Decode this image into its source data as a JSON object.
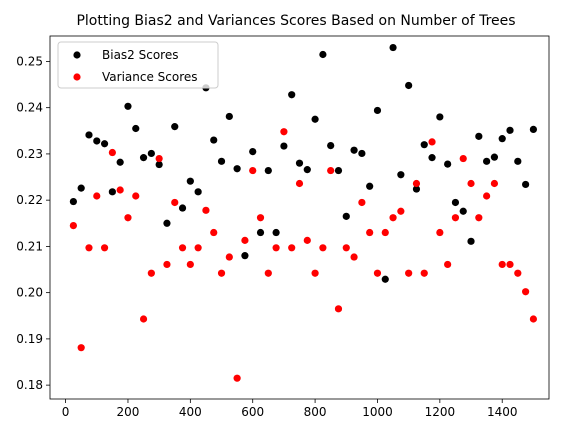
{
  "chart_data": {
    "type": "scatter",
    "title": "Plotting Bias2 and Variances Scores Based on Number of Trees",
    "xlabel": "",
    "ylabel": "",
    "xlim": [
      -50,
      1550
    ],
    "ylim": [
      0.177,
      0.2555
    ],
    "xticks": [
      0,
      200,
      400,
      600,
      800,
      1000,
      1200,
      1400
    ],
    "yticks": [
      0.18,
      0.19,
      0.2,
      0.21,
      0.22,
      0.23,
      0.24,
      0.25
    ],
    "ytick_labels": [
      "0.18",
      "0.19",
      "0.20",
      "0.21",
      "0.22",
      "0.23",
      "0.24",
      "0.25"
    ],
    "grid": false,
    "legend_position": "top-left",
    "series": [
      {
        "name": "Bias2 Scores",
        "color": "#000000",
        "points": [
          [
            25,
            0.2197
          ],
          [
            50,
            0.2226
          ],
          [
            75,
            0.2341
          ],
          [
            100,
            0.2328
          ],
          [
            125,
            0.2322
          ],
          [
            150,
            0.2218
          ],
          [
            175,
            0.2282
          ],
          [
            200,
            0.2403
          ],
          [
            225,
            0.2355
          ],
          [
            250,
            0.2292
          ],
          [
            275,
            0.2301
          ],
          [
            300,
            0.2277
          ],
          [
            325,
            0.215
          ],
          [
            350,
            0.2359
          ],
          [
            375,
            0.2183
          ],
          [
            400,
            0.2241
          ],
          [
            425,
            0.2218
          ],
          [
            450,
            0.2443
          ],
          [
            475,
            0.233
          ],
          [
            500,
            0.2284
          ],
          [
            525,
            0.2381
          ],
          [
            550,
            0.2268
          ],
          [
            575,
            0.208
          ],
          [
            600,
            0.2305
          ],
          [
            625,
            0.213
          ],
          [
            650,
            0.2264
          ],
          [
            675,
            0.213
          ],
          [
            700,
            0.2317
          ],
          [
            725,
            0.2428
          ],
          [
            750,
            0.228
          ],
          [
            775,
            0.2266
          ],
          [
            800,
            0.2375
          ],
          [
            825,
            0.2515
          ],
          [
            850,
            0.2318
          ],
          [
            875,
            0.2264
          ],
          [
            900,
            0.2165
          ],
          [
            925,
            0.2308
          ],
          [
            950,
            0.2301
          ],
          [
            975,
            0.223
          ],
          [
            1000,
            0.2394
          ],
          [
            1025,
            0.2029
          ],
          [
            1050,
            0.253
          ],
          [
            1075,
            0.2255
          ],
          [
            1100,
            0.2448
          ],
          [
            1125,
            0.2224
          ],
          [
            1150,
            0.232
          ],
          [
            1175,
            0.2292
          ],
          [
            1200,
            0.238
          ],
          [
            1225,
            0.2278
          ],
          [
            1250,
            0.2195
          ],
          [
            1275,
            0.2176
          ],
          [
            1300,
            0.2111
          ],
          [
            1325,
            0.2338
          ],
          [
            1350,
            0.2284
          ],
          [
            1375,
            0.2293
          ],
          [
            1400,
            0.2333
          ],
          [
            1425,
            0.2351
          ],
          [
            1450,
            0.2284
          ],
          [
            1475,
            0.2234
          ],
          [
            1500,
            0.2353
          ]
        ]
      },
      {
        "name": "Variance Scores",
        "color": "#ff0000",
        "points": [
          [
            25,
            0.2145
          ],
          [
            50,
            0.1881
          ],
          [
            75,
            0.2097
          ],
          [
            100,
            0.2209
          ],
          [
            125,
            0.2097
          ],
          [
            150,
            0.2303
          ],
          [
            175,
            0.2222
          ],
          [
            200,
            0.2162
          ],
          [
            225,
            0.2209
          ],
          [
            250,
            0.1943
          ],
          [
            275,
            0.2042
          ],
          [
            300,
            0.229
          ],
          [
            325,
            0.2061
          ],
          [
            350,
            0.2195
          ],
          [
            375,
            0.2097
          ],
          [
            400,
            0.2061
          ],
          [
            425,
            0.2097
          ],
          [
            450,
            0.2178
          ],
          [
            475,
            0.213
          ],
          [
            500,
            0.2042
          ],
          [
            525,
            0.2077
          ],
          [
            550,
            0.1815
          ],
          [
            575,
            0.2113
          ],
          [
            600,
            0.2264
          ],
          [
            625,
            0.2162
          ],
          [
            650,
            0.2042
          ],
          [
            675,
            0.2097
          ],
          [
            700,
            0.2348
          ],
          [
            725,
            0.2097
          ],
          [
            750,
            0.2236
          ],
          [
            775,
            0.2113
          ],
          [
            800,
            0.2042
          ],
          [
            825,
            0.2097
          ],
          [
            850,
            0.2264
          ],
          [
            875,
            0.1965
          ],
          [
            900,
            0.2097
          ],
          [
            925,
            0.2077
          ],
          [
            950,
            0.2195
          ],
          [
            975,
            0.213
          ],
          [
            1000,
            0.2042
          ],
          [
            1025,
            0.213
          ],
          [
            1050,
            0.2162
          ],
          [
            1075,
            0.2176
          ],
          [
            1100,
            0.2042
          ],
          [
            1125,
            0.2236
          ],
          [
            1150,
            0.2042
          ],
          [
            1175,
            0.2326
          ],
          [
            1200,
            0.213
          ],
          [
            1225,
            0.2061
          ],
          [
            1250,
            0.2162
          ],
          [
            1275,
            0.229
          ],
          [
            1300,
            0.2236
          ],
          [
            1325,
            0.2162
          ],
          [
            1350,
            0.2209
          ],
          [
            1375,
            0.2236
          ],
          [
            1400,
            0.2061
          ],
          [
            1425,
            0.2061
          ],
          [
            1450,
            0.2042
          ],
          [
            1475,
            0.2002
          ],
          [
            1500,
            0.1943
          ]
        ]
      }
    ]
  }
}
